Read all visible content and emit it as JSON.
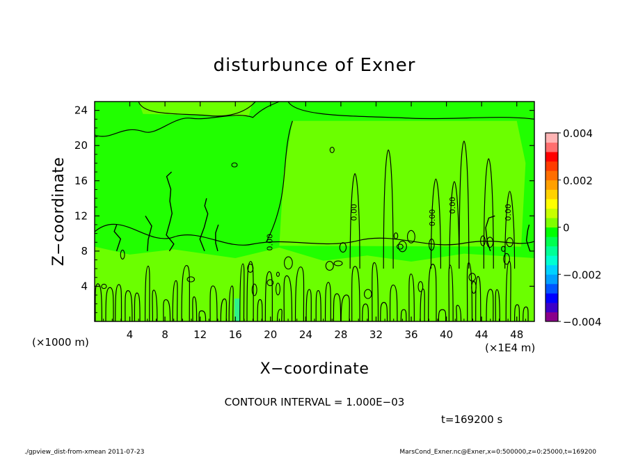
{
  "chart_data": {
    "type": "heatmap",
    "title": "disturbunce of Exner",
    "xlabel": "X−coordinate",
    "ylabel": "Z−coordinate",
    "x_unit_left": "(×1000 m)",
    "x_unit_right": "(×1E4 m)",
    "xlim": [
      0,
      50
    ],
    "ylim": [
      0,
      25
    ],
    "x_ticks": [
      4,
      8,
      12,
      16,
      20,
      24,
      28,
      32,
      36,
      40,
      44,
      48
    ],
    "y_ticks": [
      4,
      8,
      12,
      16,
      20,
      24
    ],
    "colorbar": {
      "min": -0.004,
      "max": 0.004,
      "tick_values": [
        0.004,
        0.002,
        0,
        -0.002,
        -0.004
      ],
      "tick_labels": [
        "0.004",
        "0.002",
        "0",
        "−0.002",
        "−0.004"
      ],
      "colors": [
        "#8a008a",
        "#3c00c8",
        "#0000ff",
        "#0055ff",
        "#00a0ff",
        "#00d2ff",
        "#00ffd2",
        "#00ff96",
        "#00ff50",
        "#00ff00",
        "#7fff00",
        "#c8ff00",
        "#ffff00",
        "#ffd200",
        "#ffa000",
        "#ff6e00",
        "#ff3c00",
        "#ff0000",
        "#ff6e6e",
        "#ffb4b4"
      ]
    },
    "contour_interval": "CONTOUR INTERVAL = 1.000E−03",
    "time_label": "t=169200 s",
    "contour_labels": [
      "0.00",
      "0.00",
      "0.00",
      "0.00",
      "0.00"
    ],
    "background_field_color": "#21ff00",
    "lower_field_color": "#6bff00"
  },
  "footer": {
    "left": "./gpview_dist-from-xmean  2011-07-23",
    "right": "MarsCond_Exner.nc@Exner,x=0:500000,z=0:25000,t=169200"
  }
}
